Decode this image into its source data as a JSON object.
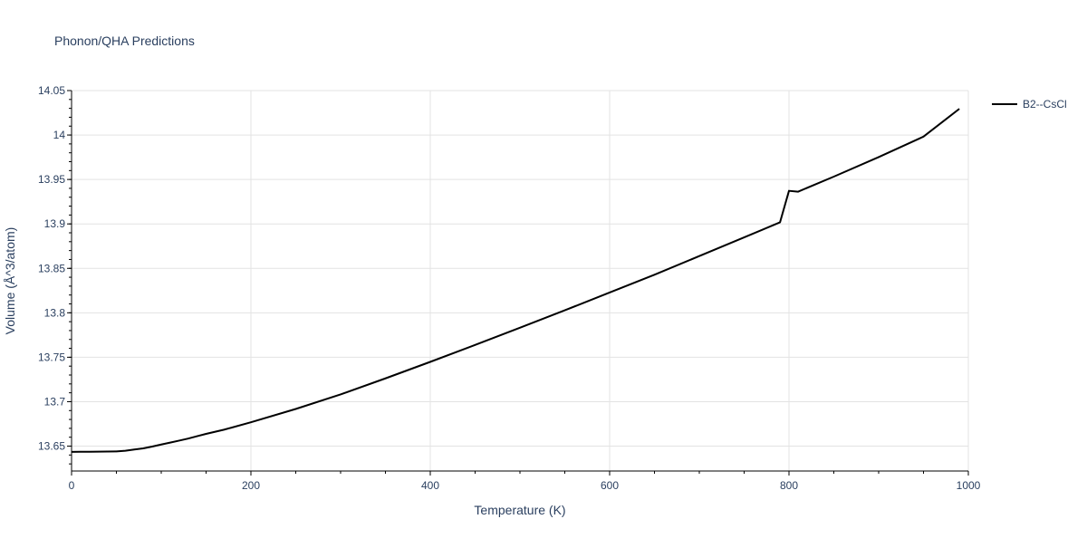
{
  "chart_data": {
    "type": "line",
    "title": "Phonon/QHA Predictions",
    "xlabel": "Temperature (K)",
    "ylabel": "Volume (Å^3/atom)",
    "xlim": [
      0,
      1000
    ],
    "ylim": [
      13.622,
      14.05
    ],
    "x_ticks": [
      0,
      200,
      400,
      600,
      800,
      1000
    ],
    "x_tick_labels": [
      "0",
      "200",
      "400",
      "600",
      "800",
      "1000"
    ],
    "y_ticks": [
      13.65,
      13.7,
      13.75,
      13.8,
      13.85,
      13.9,
      13.95,
      14,
      14.05
    ],
    "y_tick_labels": [
      "13.65",
      "13.7",
      "13.75",
      "13.8",
      "13.85",
      "13.9",
      "13.95",
      "14",
      "14.05"
    ],
    "grid": true,
    "legend_position": "top-right",
    "series": [
      {
        "name": "B2--CsCl",
        "color": "#000000",
        "x": [
          0,
          10,
          20,
          30,
          40,
          50,
          60,
          70,
          80,
          90,
          100,
          110,
          120,
          130,
          140,
          150,
          170,
          200,
          250,
          300,
          350,
          400,
          450,
          500,
          550,
          600,
          650,
          700,
          750,
          790,
          800,
          810,
          850,
          900,
          950,
          990
        ],
        "y": [
          13.6435,
          13.6436,
          13.6437,
          13.6438,
          13.6439,
          13.644,
          13.6448,
          13.6462,
          13.6475,
          13.6495,
          13.6518,
          13.654,
          13.6562,
          13.6585,
          13.6612,
          13.6638,
          13.6685,
          13.6768,
          13.6918,
          13.7082,
          13.7262,
          13.7448,
          13.7638,
          13.7832,
          13.8028,
          13.8228,
          13.8428,
          13.8638,
          13.8848,
          13.9018,
          13.9372,
          13.9362,
          13.9532,
          13.9752,
          13.9982,
          14.0295
        ]
      }
    ]
  }
}
